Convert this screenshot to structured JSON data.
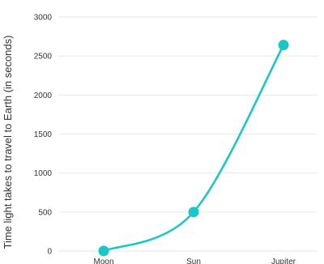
{
  "chart_data": {
    "type": "line",
    "categories": [
      "Moon",
      "Sun",
      "Jupiter"
    ],
    "series": [
      {
        "values": [
          1.3,
          500,
          2640
        ]
      }
    ],
    "ylabel": "Time light takes to travel to Earth (in seconds)",
    "xlabel": "",
    "ylim": [
      0,
      3000
    ],
    "yticks": [
      0,
      500,
      1000,
      1500,
      2000,
      2500,
      3000
    ],
    "grid": true,
    "smooth": true,
    "color": "#1cc6c6"
  }
}
